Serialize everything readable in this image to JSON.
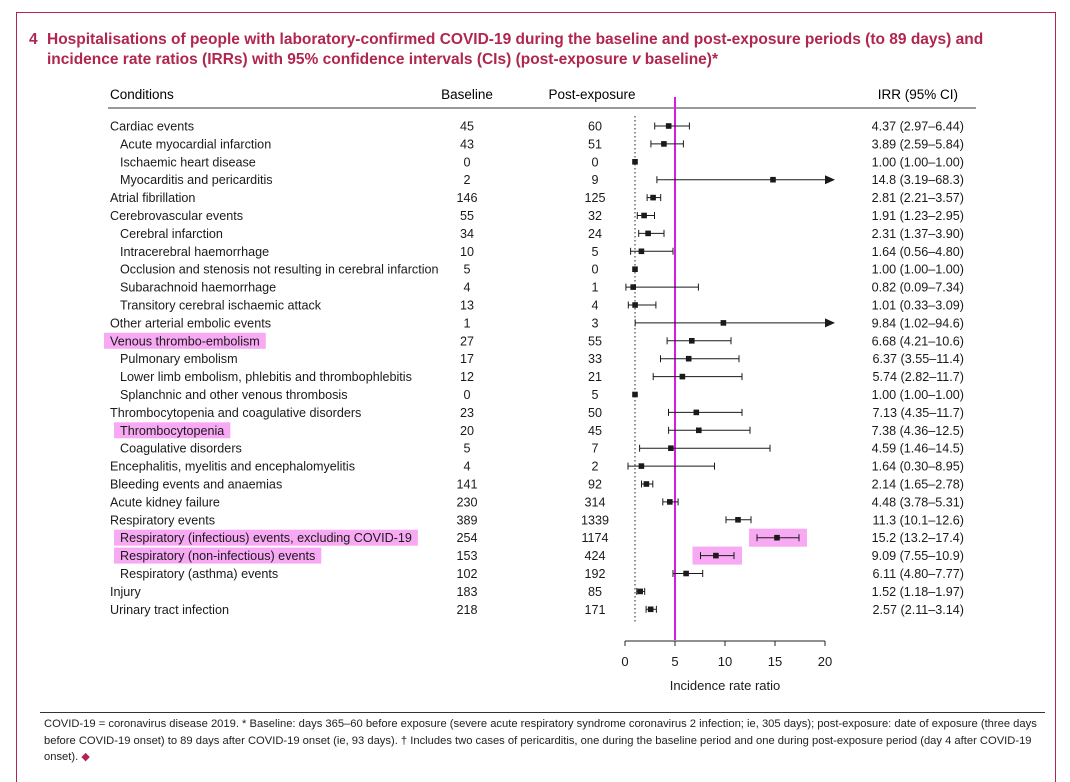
{
  "figure": {
    "number": "4",
    "title_line1": "Hospitalisations of people with laboratory-confirmed COVID-19 during the baseline and post-exposure periods (to 89 days) and",
    "title_line2_a": "incidence rate ratios (IRRs) with 95% confidence intervals (CIs) (post-exposure ",
    "title_line2_v": "v",
    "title_line2_b": " baseline)*"
  },
  "headers": {
    "conditions": "Conditions",
    "baseline": "Baseline",
    "post": "Post-exposure",
    "irr": "IRR (95% CI)"
  },
  "footnote": "COVID-19 = coronavirus disease 2019. * Baseline: days 365–60 before exposure (severe acute respiratory syndrome coronavirus 2 infection; ie, 305 days); post-exposure: date of exposure (three days before COVID-19 onset) to 89 days after COVID-19 onset (ie, 93 days). † Includes two cases of pericarditis, one during the baseline period and one during post-exposure period (day 4 after COVID-19 onset).",
  "colors": {
    "brand": "#b0264f",
    "highlight": "#f79af2",
    "reference_line": "#d61ce0",
    "marker": "#1a1a1a"
  },
  "chart_data": {
    "type": "forest",
    "xlabel": "Incidence rate ratio",
    "xlim": [
      0,
      20
    ],
    "xticks": [
      0,
      5,
      10,
      15,
      20
    ],
    "null_line": 1,
    "highlight_line": 5,
    "rows": [
      {
        "label": "Cardiac events",
        "indent": 0,
        "baseline": "45",
        "post": "60",
        "irr": 4.37,
        "lo": 2.97,
        "hi": 6.44,
        "irr_text": "4.37 (2.97–6.44)"
      },
      {
        "label": "Acute myocardial infarction",
        "indent": 1,
        "baseline": "43",
        "post": "51",
        "irr": 3.89,
        "lo": 2.59,
        "hi": 5.84,
        "irr_text": "3.89 (2.59–5.84)"
      },
      {
        "label": "Ischaemic heart disease",
        "indent": 1,
        "baseline": "0",
        "post": "0",
        "irr": 1.0,
        "lo": 1.0,
        "hi": 1.0,
        "irr_text": "1.00 (1.00–1.00)"
      },
      {
        "label": "Myocarditis and pericarditis",
        "indent": 1,
        "baseline": "2",
        "post": "9",
        "irr": 14.8,
        "lo": 3.19,
        "hi": 68.3,
        "irr_text": "14.8 (3.19–68.3)"
      },
      {
        "label": "Atrial fibrillation",
        "indent": 0,
        "baseline": "146",
        "post": "125",
        "irr": 2.81,
        "lo": 2.21,
        "hi": 3.57,
        "irr_text": "2.81 (2.21–3.57)"
      },
      {
        "label": "Cerebrovascular events",
        "indent": 0,
        "baseline": "55",
        "post": "32",
        "irr": 1.91,
        "lo": 1.23,
        "hi": 2.95,
        "irr_text": "1.91 (1.23–2.95)"
      },
      {
        "label": "Cerebral infarction",
        "indent": 1,
        "baseline": "34",
        "post": "24",
        "irr": 2.31,
        "lo": 1.37,
        "hi": 3.9,
        "irr_text": "2.31 (1.37–3.90)"
      },
      {
        "label": "Intracerebral haemorrhage",
        "indent": 1,
        "baseline": "10",
        "post": "5",
        "irr": 1.64,
        "lo": 0.56,
        "hi": 4.8,
        "irr_text": "1.64 (0.56–4.80)"
      },
      {
        "label": "Occlusion and stenosis not resulting in cerebral infarction",
        "indent": 1,
        "baseline": "5",
        "post": "0",
        "irr": 1.0,
        "lo": 1.0,
        "hi": 1.0,
        "irr_text": "1.00 (1.00–1.00)"
      },
      {
        "label": "Subarachnoid haemorrhage",
        "indent": 1,
        "baseline": "4",
        "post": "1",
        "irr": 0.82,
        "lo": 0.09,
        "hi": 7.34,
        "irr_text": "0.82 (0.09–7.34)"
      },
      {
        "label": "Transitory cerebral ischaemic attack",
        "indent": 1,
        "baseline": "13",
        "post": "4",
        "irr": 1.01,
        "lo": 0.33,
        "hi": 3.09,
        "irr_text": "1.01 (0.33–3.09)"
      },
      {
        "label": "Other arterial embolic events",
        "indent": 0,
        "baseline": "1",
        "post": "3",
        "irr": 9.84,
        "lo": 1.02,
        "hi": 94.6,
        "irr_text": "9.84 (1.02–94.6)"
      },
      {
        "label": "Venous thrombo-embolism",
        "indent": 0,
        "baseline": "27",
        "post": "55",
        "irr": 6.68,
        "lo": 4.21,
        "hi": 10.6,
        "irr_text": "6.68 (4.21–10.6)",
        "highlight_label": true
      },
      {
        "label": "Pulmonary embolism",
        "indent": 1,
        "baseline": "17",
        "post": "33",
        "irr": 6.37,
        "lo": 3.55,
        "hi": 11.4,
        "irr_text": "6.37 (3.55–11.4)"
      },
      {
        "label": "Lower limb embolism, phlebitis and thrombophlebitis",
        "indent": 1,
        "baseline": "12",
        "post": "21",
        "irr": 5.74,
        "lo": 2.82,
        "hi": 11.7,
        "irr_text": "5.74 (2.82–11.7)"
      },
      {
        "label": "Splanchnic and other venous thrombosis",
        "indent": 1,
        "baseline": "0",
        "post": "5",
        "irr": 1.0,
        "lo": 1.0,
        "hi": 1.0,
        "irr_text": "1.00 (1.00–1.00)"
      },
      {
        "label": "Thrombocytopenia and coagulative disorders",
        "indent": 0,
        "baseline": "23",
        "post": "50",
        "irr": 7.13,
        "lo": 4.35,
        "hi": 11.7,
        "irr_text": "7.13 (4.35–11.7)"
      },
      {
        "label": "Thrombocytopenia",
        "indent": 1,
        "baseline": "20",
        "post": "45",
        "irr": 7.38,
        "lo": 4.36,
        "hi": 12.5,
        "irr_text": "7.38 (4.36–12.5)",
        "highlight_label": true
      },
      {
        "label": "Coagulative disorders",
        "indent": 1,
        "baseline": "5",
        "post": "7",
        "irr": 4.59,
        "lo": 1.46,
        "hi": 14.5,
        "irr_text": "4.59 (1.46–14.5)"
      },
      {
        "label": "Encephalitis, myelitis and encephalomyelitis",
        "indent": 0,
        "baseline": "4",
        "post": "2",
        "irr": 1.64,
        "lo": 0.3,
        "hi": 8.95,
        "irr_text": "1.64 (0.30–8.95)"
      },
      {
        "label": "Bleeding events and anaemias",
        "indent": 0,
        "baseline": "141",
        "post": "92",
        "irr": 2.14,
        "lo": 1.65,
        "hi": 2.78,
        "irr_text": "2.14 (1.65–2.78)"
      },
      {
        "label": "Acute kidney failure",
        "indent": 0,
        "baseline": "230",
        "post": "314",
        "irr": 4.48,
        "lo": 3.78,
        "hi": 5.31,
        "irr_text": "4.48 (3.78–5.31)"
      },
      {
        "label": "Respiratory events",
        "indent": 0,
        "baseline": "389",
        "post": "1339",
        "irr": 11.3,
        "lo": 10.1,
        "hi": 12.6,
        "irr_text": "11.3 (10.1–12.6)"
      },
      {
        "label": "Respiratory (infectious) events, excluding COVID-19",
        "indent": 1,
        "baseline": "254",
        "post": "1174",
        "irr": 15.2,
        "lo": 13.2,
        "hi": 17.4,
        "irr_text": "15.2 (13.2–17.4)",
        "highlight_label": true,
        "highlight_ci": true
      },
      {
        "label": "Respiratory (non-infectious) events",
        "indent": 1,
        "baseline": "153",
        "post": "424",
        "irr": 9.09,
        "lo": 7.55,
        "hi": 10.9,
        "irr_text": "9.09 (7.55–10.9)",
        "highlight_label": true,
        "highlight_ci": true
      },
      {
        "label": "Respiratory (asthma) events",
        "indent": 1,
        "baseline": "102",
        "post": "192",
        "irr": 6.11,
        "lo": 4.8,
        "hi": 7.77,
        "irr_text": "6.11 (4.80–7.77)"
      },
      {
        "label": "Injury",
        "indent": 0,
        "baseline": "183",
        "post": "85",
        "irr": 1.52,
        "lo": 1.18,
        "hi": 1.97,
        "irr_text": "1.52 (1.18–1.97)"
      },
      {
        "label": "Urinary tract infection",
        "indent": 0,
        "baseline": "218",
        "post": "171",
        "irr": 2.57,
        "lo": 2.11,
        "hi": 3.14,
        "irr_text": "2.57 (2.11–3.14)"
      }
    ]
  }
}
